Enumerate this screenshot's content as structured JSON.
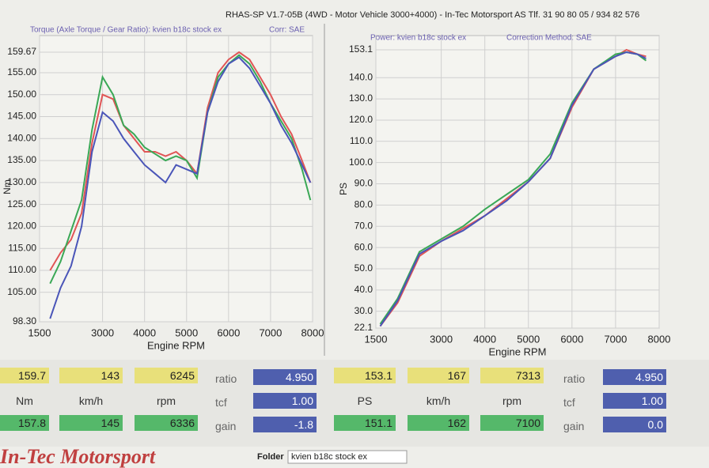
{
  "header": "RHAS-SP V1.7-05B  (4WD - Motor Vehicle 3000+4000) - In-Tec Motorsport AS Tlf. 31 90 80 05 / 934 82 576",
  "chart_data": [
    {
      "type": "line",
      "subtitle": "Torque (Axle Torque / Gear Ratio): kvien b18c stock ex",
      "correction": "Corr: SAE",
      "y_label": "Nm",
      "x_label": "Engine RPM",
      "x": [
        1750,
        2000,
        2250,
        2500,
        2750,
        3000,
        3250,
        3500,
        3750,
        4000,
        4250,
        4500,
        4750,
        5000,
        5250,
        5500,
        5750,
        6000,
        6250,
        6500,
        6750,
        7000,
        7250,
        7500,
        7750,
        7950
      ],
      "series": [
        {
          "color": "#e05555",
          "values": [
            110,
            114,
            117,
            123,
            139,
            150,
            149,
            143,
            140,
            137,
            137,
            136,
            137,
            135,
            132,
            147,
            155,
            158,
            159.67,
            158,
            154,
            150,
            145,
            141,
            135,
            130
          ]
        },
        {
          "color": "#3aa856",
          "values": [
            107,
            112,
            119,
            126,
            142,
            154,
            150,
            143,
            141,
            138,
            136.5,
            135,
            136,
            135,
            131,
            146,
            154,
            157,
            159,
            157,
            153,
            148,
            144,
            140,
            133,
            126
          ]
        },
        {
          "color": "#4a55b8",
          "values": [
            99,
            106,
            111,
            120,
            137,
            146,
            144,
            140,
            137,
            134,
            132,
            130,
            134,
            133,
            132,
            146,
            153,
            157,
            158.5,
            156,
            152,
            148,
            143,
            139,
            134,
            130
          ]
        }
      ],
      "xlim": [
        1500,
        8000
      ],
      "xticks": [
        1500,
        3000,
        4000,
        5000,
        6000,
        7000,
        8000
      ],
      "ylim": [
        98.3,
        159.67
      ],
      "yticks": [
        {
          "value": 98.3,
          "label": "98.30"
        },
        {
          "value": 105,
          "label": "105.00"
        },
        {
          "value": 110,
          "label": "110.00"
        },
        {
          "value": 115,
          "label": "115.00"
        },
        {
          "value": 120,
          "label": "120.00"
        },
        {
          "value": 125,
          "label": "125.00"
        },
        {
          "value": 130,
          "label": "130.00"
        },
        {
          "value": 135,
          "label": "135.00"
        },
        {
          "value": 140,
          "label": "140.00"
        },
        {
          "value": 145,
          "label": "145.00"
        },
        {
          "value": 150,
          "label": "150.00"
        },
        {
          "value": 155,
          "label": "155.00"
        },
        {
          "value": 159.67,
          "label": "159.67"
        }
      ],
      "grid": true
    },
    {
      "type": "line",
      "subtitle": "Power: kvien b18c stock ex",
      "correction": "Correction Method: SAE",
      "y_label": "PS",
      "x_label": "Engine RPM",
      "x": [
        1600,
        2000,
        2500,
        3000,
        3500,
        4000,
        4500,
        5000,
        5500,
        6000,
        6500,
        7000,
        7250,
        7500,
        7700
      ],
      "series": [
        {
          "color": "#e05555",
          "values": [
            23,
            34,
            56,
            63,
            69,
            75,
            83,
            91,
            102,
            126,
            144,
            150,
            153.1,
            151,
            150
          ]
        },
        {
          "color": "#3aa856",
          "values": [
            24,
            36,
            58,
            64,
            70,
            78,
            85,
            92,
            104,
            128,
            144,
            151,
            152,
            151,
            148
          ]
        },
        {
          "color": "#4a55b8",
          "values": [
            23,
            35,
            57,
            63,
            68,
            75,
            82,
            91,
            102,
            127,
            144,
            150,
            152,
            151,
            149
          ]
        }
      ],
      "xlim": [
        1500,
        8000
      ],
      "xticks": [
        1500,
        3000,
        4000,
        5000,
        6000,
        7000,
        8000
      ],
      "ylim": [
        22.1,
        153.1
      ],
      "yticks": [
        22.1,
        {
          "value": 30,
          "label": "30.0"
        },
        {
          "value": 40,
          "label": "40.0"
        },
        {
          "value": 50,
          "label": "50.0"
        },
        {
          "value": 60,
          "label": "60.0"
        },
        {
          "value": 70,
          "label": "70.0"
        },
        {
          "value": 80,
          "label": "80.0"
        },
        {
          "value": 90,
          "label": "90.0"
        },
        {
          "value": 100,
          "label": "100.0"
        },
        {
          "value": 110,
          "label": "110.0"
        },
        {
          "value": 120,
          "label": "120.0"
        },
        {
          "value": 130,
          "label": "130.0"
        },
        {
          "value": 140,
          "label": "140.0"
        },
        153.1
      ],
      "grid": true
    }
  ],
  "readouts": [
    {
      "top": [
        "159.7",
        "143",
        "6245"
      ],
      "units": [
        "Nm",
        "km/h",
        "rpm"
      ],
      "bottom": [
        "157.8",
        "145",
        "6336"
      ],
      "params": [
        {
          "label": "ratio",
          "value": "4.950"
        },
        {
          "label": "tcf",
          "value": "1.00"
        },
        {
          "label": "gain",
          "value": "-1.8"
        }
      ]
    },
    {
      "top": [
        "153.1",
        "167",
        "7313"
      ],
      "units": [
        "PS",
        "km/h",
        "rpm"
      ],
      "bottom": [
        "151.1",
        "162",
        "7100"
      ],
      "params": [
        {
          "label": "ratio",
          "value": "4.950"
        },
        {
          "label": "tcf",
          "value": "1.00"
        },
        {
          "label": "gain",
          "value": "0.0"
        }
      ]
    }
  ],
  "footer": {
    "logo": "In-Tec Motorsport",
    "folder_label": "Folder",
    "folder": "kvien b18c stock ex"
  }
}
